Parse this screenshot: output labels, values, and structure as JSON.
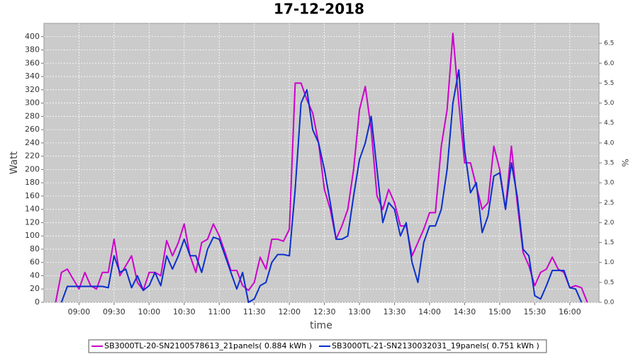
{
  "chart_data": {
    "type": "line",
    "title": "17-12-2018",
    "x_label": "time",
    "y_label": "Watt",
    "y2_label": "%",
    "xlim": [
      "08:30",
      "16:25"
    ],
    "xticks": [
      "09:00",
      "09:30",
      "10:00",
      "10:30",
      "11:00",
      "11:30",
      "12:00",
      "12:30",
      "13:00",
      "13:30",
      "14:00",
      "14:30",
      "15:00",
      "15:30",
      "16:00"
    ],
    "ylim": [
      0,
      420
    ],
    "yticks": [
      0,
      20,
      40,
      60,
      80,
      100,
      120,
      140,
      160,
      180,
      200,
      220,
      240,
      260,
      280,
      300,
      320,
      340,
      360,
      380,
      400
    ],
    "y2lim": [
      0,
      7
    ],
    "y2ticks": [
      {
        "value": 0,
        "label": "0.0"
      },
      0.5,
      {
        "value": 1,
        "label": "1.0"
      },
      1.5,
      {
        "value": 2,
        "label": "2.0"
      },
      2.5,
      {
        "value": 3,
        "label": "3.0"
      },
      3.5,
      {
        "value": 4,
        "label": "4.0"
      },
      4.5,
      {
        "value": 5,
        "label": "5.0"
      },
      5.5,
      {
        "value": 6,
        "label": "6.0"
      },
      6.5
    ],
    "grid": true,
    "legend": "bottom",
    "x": [
      "08:40",
      "08:45",
      "08:50",
      "08:55",
      "09:00",
      "09:05",
      "09:10",
      "09:15",
      "09:20",
      "09:25",
      "09:30",
      "09:35",
      "09:40",
      "09:45",
      "09:50",
      "09:55",
      "10:00",
      "10:05",
      "10:10",
      "10:15",
      "10:20",
      "10:25",
      "10:30",
      "10:35",
      "10:40",
      "10:45",
      "10:50",
      "10:55",
      "11:00",
      "11:05",
      "11:10",
      "11:15",
      "11:20",
      "11:25",
      "11:30",
      "11:35",
      "11:40",
      "11:45",
      "11:50",
      "11:55",
      "12:00",
      "12:05",
      "12:10",
      "12:15",
      "12:20",
      "12:25",
      "12:30",
      "12:35",
      "12:40",
      "12:45",
      "12:50",
      "12:55",
      "13:00",
      "13:05",
      "13:10",
      "13:15",
      "13:20",
      "13:25",
      "13:30",
      "13:35",
      "13:40",
      "13:45",
      "13:50",
      "13:55",
      "14:00",
      "14:05",
      "14:10",
      "14:15",
      "14:20",
      "14:25",
      "14:30",
      "14:35",
      "14:40",
      "14:45",
      "14:50",
      "14:55",
      "15:00",
      "15:05",
      "15:10",
      "15:15",
      "15:20",
      "15:25",
      "15:30",
      "15:35",
      "15:40",
      "15:45",
      "15:50",
      "15:55",
      "16:00",
      "16:05",
      "16:10",
      "16:15"
    ],
    "series": [
      {
        "name": "SB3000TL-20-SN2100578613_21panels( 0.884 kWh )",
        "color": "#cc00cc",
        "values": [
          0,
          45,
          50,
          35,
          20,
          45,
          25,
          20,
          45,
          45,
          95,
          40,
          55,
          70,
          30,
          18,
          45,
          45,
          40,
          93,
          70,
          90,
          118,
          70,
          45,
          90,
          95,
          118,
          100,
          75,
          48,
          48,
          25,
          18,
          30,
          68,
          50,
          95,
          95,
          92,
          110,
          330,
          330,
          305,
          285,
          240,
          170,
          140,
          95,
          115,
          140,
          200,
          290,
          325,
          260,
          160,
          140,
          170,
          150,
          115,
          115,
          70,
          90,
          110,
          135,
          135,
          235,
          290,
          405,
          300,
          210,
          210,
          175,
          140,
          150,
          235,
          200,
          140,
          235,
          150,
          75,
          55,
          25,
          45,
          50,
          68,
          50,
          45,
          22,
          25,
          22,
          0
        ]
      },
      {
        "name": "SB3000TL-21-SN2130032031_19panels( 0.751 kWh )",
        "color": "#0a2fcc",
        "values": [
          null,
          0,
          24,
          24,
          24,
          24,
          24,
          24,
          24,
          22,
          70,
          45,
          50,
          22,
          40,
          18,
          25,
          45,
          25,
          70,
          50,
          70,
          95,
          70,
          70,
          45,
          80,
          98,
          95,
          70,
          45,
          20,
          45,
          0,
          5,
          25,
          30,
          60,
          72,
          72,
          70,
          170,
          300,
          320,
          260,
          240,
          200,
          150,
          95,
          95,
          100,
          160,
          215,
          240,
          280,
          200,
          120,
          150,
          140,
          100,
          120,
          60,
          30,
          90,
          115,
          115,
          140,
          200,
          300,
          350,
          230,
          165,
          180,
          105,
          130,
          190,
          195,
          140,
          210,
          160,
          80,
          70,
          10,
          5,
          25,
          48,
          48,
          48,
          22,
          20,
          0,
          null
        ]
      }
    ]
  }
}
